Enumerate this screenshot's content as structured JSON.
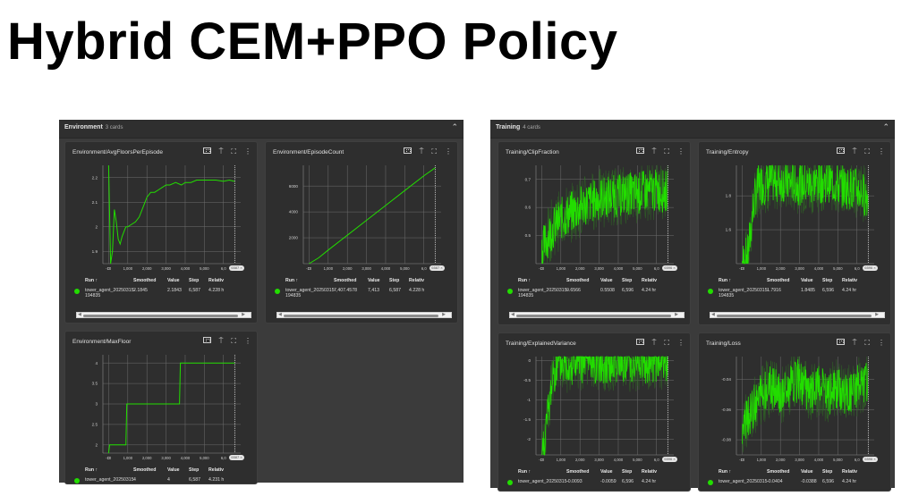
{
  "page_title": "Hybrid CEM+PPO Policy",
  "colors": {
    "accent_green": "#22dd00",
    "panel_bg": "#3b3b3b",
    "card_bg": "#2e2e2e",
    "header_bg": "#2f2f2f"
  },
  "panels": [
    {
      "name": "Environment",
      "count_label": "3 cards",
      "collapse_icon": "chevron-up-icon",
      "cards": [
        {
          "title": "Environment/AvgFloorsPerEpisode",
          "table": {
            "headers": [
              "Run ↑",
              "Smoothed",
              "Value",
              "Step",
              "Relativ"
            ],
            "rows": [
              {
                "run": "tower_agent_20250315-",
                "run2": "194835",
                "smoothed": "2.1845",
                "value": "2.1843",
                "step": "6,587",
                "relative": "4.228 h"
              }
            ]
          },
          "step_badge": "6587 ×"
        },
        {
          "title": "Environment/EpisodeCount",
          "table": {
            "headers": [
              "Run ↑",
              "Smoothed",
              "Value",
              "Step",
              "Relativ"
            ],
            "rows": [
              {
                "run": "tower_agent_20250315-",
                "run2": "194835",
                "smoothed": "7,407.4578",
                "value": "7,413",
                "step": "6,587",
                "relative": "4.228 h"
              }
            ]
          },
          "step_badge": "6587 ×"
        },
        {
          "title": "Environment/MaxFloor",
          "table": {
            "headers": [
              "Run ↑",
              "Smoothed",
              "Value",
              "Step",
              "Relativ"
            ],
            "rows": [
              {
                "run": "tower_agent_20250315-",
                "run2": "",
                "smoothed": "4",
                "value": "4",
                "step": "6,587",
                "relative": "4.231 h"
              }
            ]
          },
          "step_badge": "6587 ×"
        }
      ]
    },
    {
      "name": "Training",
      "count_label": "4 cards",
      "collapse_icon": "chevron-up-icon",
      "cards": [
        {
          "title": "Training/ClipFraction",
          "table": {
            "headers": [
              "Run ↑",
              "Smoothed",
              "Value",
              "Step",
              "Relativ"
            ],
            "rows": [
              {
                "run": "tower_agent_20250315-",
                "run2": "194835",
                "smoothed": "0.6566",
                "value": "0.5508",
                "step": "6,596",
                "relative": "4.24 hr"
              }
            ]
          },
          "step_badge": "6596 ×"
        },
        {
          "title": "Training/Entropy",
          "table": {
            "headers": [
              "Run ↑",
              "Smoothed",
              "Value",
              "Step",
              "Relativ"
            ],
            "rows": [
              {
                "run": "tower_agent_20250315-",
                "run2": "194835",
                "smoothed": "1.7916",
                "value": "1.8485",
                "step": "6,596",
                "relative": "4.24 hr"
              }
            ]
          },
          "step_badge": "6596 ×"
        },
        {
          "title": "Training/ExplainedVariance",
          "table": {
            "headers": [
              "Run ↑",
              "Smoothed",
              "Value",
              "Step",
              "Relativ"
            ],
            "rows": [
              {
                "run": "tower_agent_20250315-",
                "run2": "",
                "smoothed": "-0.0093",
                "value": "-0.0059",
                "step": "6,596",
                "relative": "4.24 hr"
              }
            ]
          },
          "step_badge": "6596 ×"
        },
        {
          "title": "Training/Loss",
          "table": {
            "headers": [
              "Run ↑",
              "Smoothed",
              "Value",
              "Step",
              "Relativ"
            ],
            "rows": [
              {
                "run": "tower_agent_20250315-",
                "run2": "",
                "smoothed": "-0.0404",
                "value": "-0.0388",
                "step": "6,596",
                "relative": "4.24 hr"
              }
            ]
          },
          "step_badge": "6596 ×"
        }
      ]
    }
  ],
  "card_icons": [
    "fit-domain-icon",
    "pin-icon",
    "fullscreen-icon",
    "more-vert-icon"
  ],
  "chart_data": [
    {
      "type": "line",
      "title": "Environment/AvgFloorsPerEpisode",
      "xlabel": "Step",
      "ylabel": "",
      "x_ticks": [
        "-10",
        "0",
        "1,000",
        "2,000",
        "3,000",
        "4,000",
        "5,000",
        "6,0"
      ],
      "y_ticks": [
        "1.9",
        "2",
        "2.1",
        "2.2"
      ],
      "ylim": [
        1.85,
        2.25
      ],
      "x": [
        0,
        100,
        200,
        300,
        400,
        500,
        600,
        700,
        800,
        900,
        1000,
        1200,
        1400,
        1600,
        1800,
        2000,
        2200,
        2400,
        2600,
        2800,
        3000,
        3200,
        3500,
        3800,
        4000,
        4300,
        4600,
        5000,
        5300,
        5600,
        6000,
        6300,
        6587
      ],
      "values": [
        2.25,
        1.85,
        1.9,
        2.07,
        2.02,
        1.95,
        1.93,
        1.96,
        1.98,
        2.0,
        2.0,
        2.01,
        2.02,
        2.04,
        2.08,
        2.12,
        2.14,
        2.14,
        2.15,
        2.16,
        2.17,
        2.17,
        2.18,
        2.17,
        2.18,
        2.18,
        2.19,
        2.19,
        2.19,
        2.19,
        2.185,
        2.19,
        2.1845
      ],
      "grid": true
    },
    {
      "type": "line",
      "title": "Environment/EpisodeCount",
      "x_ticks": [
        "-10",
        "0",
        "1,000",
        "2,000",
        "3,000",
        "4,000",
        "5,000",
        "6,0"
      ],
      "y_ticks": [
        "2000",
        "4000",
        "6000"
      ],
      "ylim": [
        0,
        7600
      ],
      "x": [
        0,
        500,
        1000,
        2000,
        3000,
        4000,
        5000,
        6000,
        6587
      ],
      "values": [
        0,
        450,
        1050,
        2200,
        3350,
        4500,
        5650,
        6800,
        7407
      ],
      "grid": true
    },
    {
      "type": "line",
      "title": "Environment/MaxFloor",
      "x_ticks": [
        "-10",
        "0",
        "1,000",
        "2,000",
        "3,000",
        "4,000",
        "5,000",
        "6,0"
      ],
      "y_ticks": [
        "2",
        "2.5",
        "3",
        "3.5",
        "4"
      ],
      "ylim": [
        1.8,
        4.2
      ],
      "x": [
        0,
        50,
        100,
        900,
        950,
        3700,
        3750,
        6587
      ],
      "values": [
        1.8,
        2,
        2,
        2,
        3,
        3,
        4,
        4
      ],
      "grid": true
    },
    {
      "type": "line",
      "title": "Training/ClipFraction",
      "x_ticks": [
        "-10",
        "0",
        "1,000",
        "2,000",
        "3,000",
        "4,000",
        "5,000",
        "6,0"
      ],
      "y_ticks": [
        "0.5",
        "0.6",
        "0.7"
      ],
      "ylim": [
        0.4,
        0.75
      ],
      "x": [
        0,
        500,
        1000,
        1500,
        2000,
        2500,
        3000,
        3500,
        4000,
        4500,
        5000,
        5500,
        6000,
        6596
      ],
      "values": [
        0.45,
        0.52,
        0.56,
        0.58,
        0.6,
        0.62,
        0.63,
        0.64,
        0.64,
        0.65,
        0.65,
        0.66,
        0.66,
        0.6566
      ],
      "grid": true,
      "noisy": true
    },
    {
      "type": "line",
      "title": "Training/Entropy",
      "x_ticks": [
        "-10",
        "0",
        "1,000",
        "2,000",
        "3,000",
        "4,000",
        "5,000",
        "6,0"
      ],
      "y_ticks": [
        "1.6",
        "1.8"
      ],
      "ylim": [
        1.4,
        1.98
      ],
      "x": [
        0,
        300,
        600,
        800,
        1000,
        1500,
        2000,
        2500,
        3000,
        3500,
        4000,
        4500,
        5000,
        5500,
        6000,
        6596
      ],
      "values": [
        1.4,
        1.45,
        1.75,
        1.85,
        1.87,
        1.88,
        1.89,
        1.88,
        1.87,
        1.87,
        1.88,
        1.89,
        1.86,
        1.85,
        1.84,
        1.7916
      ],
      "grid": true,
      "noisy": true
    },
    {
      "type": "line",
      "title": "Training/ExplainedVariance",
      "x_ticks": [
        "-10",
        "0",
        "1,000",
        "2,000",
        "3,000",
        "4,000",
        "5,000",
        "6,0"
      ],
      "y_ticks": [
        "-2",
        "-1.5",
        "-1",
        "-0.5",
        "0"
      ],
      "ylim": [
        -2.4,
        0.1
      ],
      "x": [
        0,
        300,
        600,
        1000,
        2000,
        3000,
        4000,
        5000,
        6000,
        6596
      ],
      "values": [
        -2.4,
        -1.5,
        -0.3,
        -0.1,
        -0.05,
        -0.03,
        -0.03,
        -0.05,
        -0.02,
        -0.0093
      ],
      "grid": true,
      "noisy": true
    },
    {
      "type": "line",
      "title": "Training/Loss",
      "x_ticks": [
        "-10",
        "0",
        "1,000",
        "2,000",
        "3,000",
        "4,000",
        "5,000",
        "6,0"
      ],
      "y_ticks": [
        "-0.08",
        "-0.06",
        "-0.04"
      ],
      "ylim": [
        -0.09,
        -0.025
      ],
      "x": [
        0,
        500,
        1000,
        1500,
        2000,
        2500,
        3000,
        3500,
        4000,
        4500,
        5000,
        5500,
        6000,
        6596
      ],
      "values": [
        -0.075,
        -0.06,
        -0.05,
        -0.045,
        -0.05,
        -0.045,
        -0.04,
        -0.05,
        -0.045,
        -0.05,
        -0.045,
        -0.05,
        -0.045,
        -0.0404
      ],
      "grid": true,
      "noisy": true
    }
  ]
}
